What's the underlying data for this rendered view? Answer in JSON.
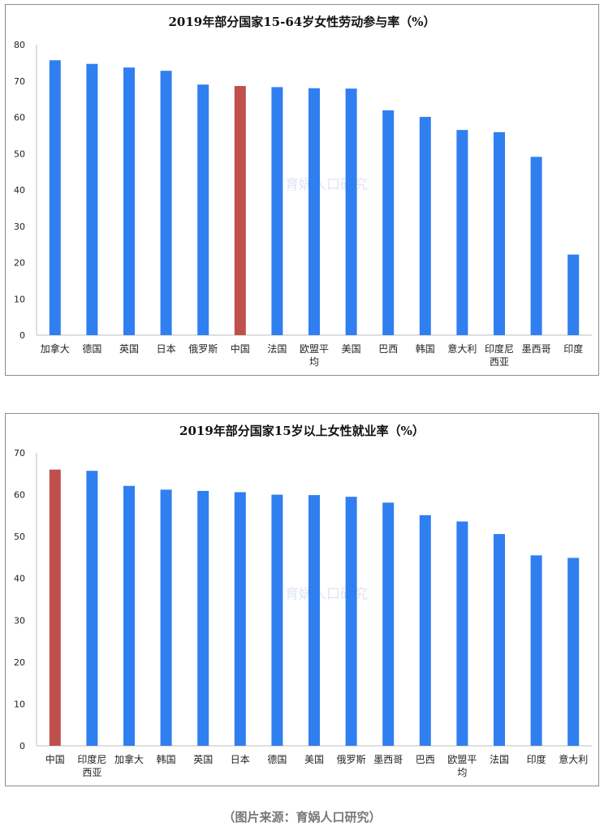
{
  "charts": [
    {
      "title": "2019年部分国家15-64岁女性劳动参与率（%）",
      "watermark": "育娲人口研究",
      "chart_data": {
        "type": "bar",
        "categories": [
          "加拿大",
          "德国",
          "英国",
          "日本",
          "俄罗斯",
          "中国",
          "法国",
          "欧盟平均",
          "美国",
          "巴西",
          "韩国",
          "意大利",
          "印度尼西亚",
          "墨西哥",
          "印度"
        ],
        "values": [
          75.7,
          74.7,
          73.7,
          72.8,
          69.0,
          68.6,
          68.3,
          68.0,
          67.9,
          61.9,
          60.1,
          56.5,
          55.9,
          49.1,
          22.2
        ],
        "highlight": "中国",
        "ylim": [
          0,
          80
        ],
        "yticks": [
          0,
          10,
          20,
          30,
          40,
          50,
          60,
          70,
          80
        ],
        "tick_label_lines": [
          [
            "加拿大"
          ],
          [
            "德国"
          ],
          [
            "英国"
          ],
          [
            "日本"
          ],
          [
            "俄罗斯"
          ],
          [
            "中国"
          ],
          [
            "法国"
          ],
          [
            "欧盟平",
            "均"
          ],
          [
            "美国"
          ],
          [
            "巴西"
          ],
          [
            "韩国"
          ],
          [
            "意大利"
          ],
          [
            "印度尼",
            "西亚"
          ],
          [
            "墨西哥"
          ],
          [
            "印度"
          ]
        ],
        "grid": false,
        "legend": "none"
      }
    },
    {
      "title": "2019年部分国家15岁以上女性就业率（%）",
      "watermark": "育娲人口研究",
      "chart_data": {
        "type": "bar",
        "categories": [
          "中国",
          "印度尼西亚",
          "加拿大",
          "韩国",
          "英国",
          "日本",
          "德国",
          "美国",
          "俄罗斯",
          "墨西哥",
          "巴西",
          "欧盟平均",
          "法国",
          "印度",
          "意大利"
        ],
        "values": [
          66.0,
          65.7,
          62.1,
          61.2,
          60.9,
          60.6,
          60.0,
          59.9,
          59.5,
          58.1,
          55.1,
          53.6,
          50.6,
          45.5,
          44.9
        ],
        "highlight": "中国",
        "ylim": [
          0,
          70
        ],
        "yticks": [
          0,
          10,
          20,
          30,
          40,
          50,
          60,
          70
        ],
        "tick_label_lines": [
          [
            "中国"
          ],
          [
            "印度尼",
            "西亚"
          ],
          [
            "加拿大"
          ],
          [
            "韩国"
          ],
          [
            "英国"
          ],
          [
            "日本"
          ],
          [
            "德国"
          ],
          [
            "美国"
          ],
          [
            "俄罗斯"
          ],
          [
            "墨西哥"
          ],
          [
            "巴西"
          ],
          [
            "欧盟平",
            "均"
          ],
          [
            "法国"
          ],
          [
            "印度"
          ],
          [
            "意大利"
          ]
        ],
        "grid": false,
        "legend": "none"
      }
    }
  ],
  "colors": {
    "bar": "#2f7ff0",
    "highlight": "#c0504d",
    "axis": "#bfbfbf",
    "tick_text": "#222222"
  },
  "source": "（图片来源：育娲人口研究）"
}
